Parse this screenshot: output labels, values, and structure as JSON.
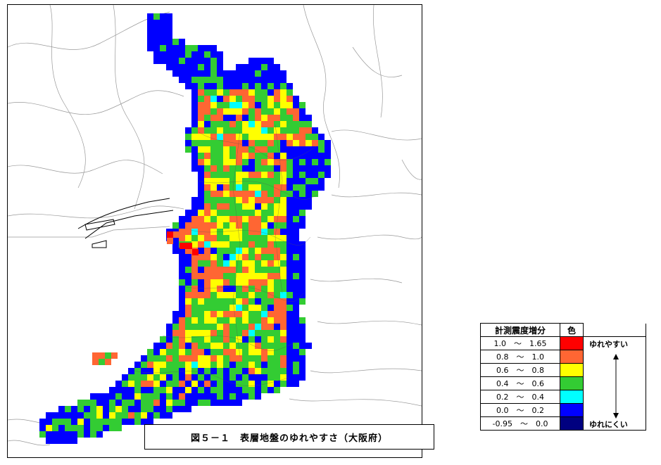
{
  "caption": "図５－１　表層地盤のゆれやすさ（大阪府）",
  "legend": {
    "header_range": "計測震度増分",
    "header_color": "色",
    "rows": [
      {
        "range": "1.0　～　1.65",
        "color": "#ff0000"
      },
      {
        "range": "0.8　～　1.0",
        "color": "#ff6633"
      },
      {
        "range": "0.6　～　0.8",
        "color": "#ffff00"
      },
      {
        "range": "0.4　～　0.6",
        "color": "#33cc33"
      },
      {
        "range": "0.2　～　0.4",
        "color": "#00ffff"
      },
      {
        "range": "0.0　～　0.2",
        "color": "#0000ff"
      },
      {
        "range": "-0.95　～　0.0",
        "color": "#000080"
      }
    ],
    "note_top": "ゆれやすい",
    "note_bottom": "ゆれにくい"
  }
}
